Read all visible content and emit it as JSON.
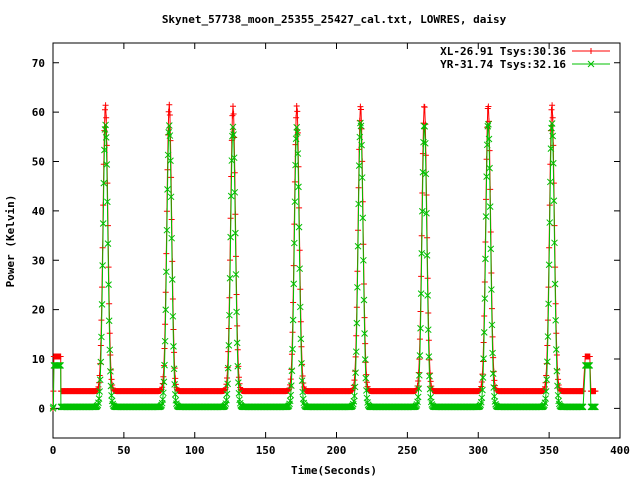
{
  "chart_data": {
    "type": "scatter",
    "title": "Skynet_57738_moon_25355_25427_cal.txt, LOWRES, daisy",
    "xlabel": "Time(Seconds)",
    "ylabel": "Power (Kelvin)",
    "xlim": [
      0,
      400
    ],
    "ylim": [
      -6,
      74
    ],
    "x_ticks": [
      "0",
      "50",
      "100",
      "150",
      "200",
      "250",
      "300",
      "350",
      "400"
    ],
    "y_ticks": [
      "0",
      "10",
      "20",
      "30",
      "40",
      "50",
      "60",
      "70"
    ],
    "grid": false,
    "legend_position": "top-right",
    "peak_times": [
      37,
      82,
      127,
      172,
      217,
      262,
      307,
      352
    ],
    "series": [
      {
        "name": "XL-26.91 Tsys:30.36",
        "color": "#ff0000",
        "marker": "plus",
        "baseline": 3.5,
        "cal_level": 10.5,
        "peak_values": [
          61.5,
          61.5,
          61.2,
          61.3,
          61.3,
          61.5,
          61.4,
          61.5
        ]
      },
      {
        "name": "YR-31.74 Tsys:32.16",
        "color": "#00c000",
        "marker": "x",
        "baseline": 0.3,
        "cal_level": 8.7,
        "peak_values": [
          57.5,
          57.3,
          57.0,
          57.0,
          58.0,
          57.6,
          57.8,
          57.8
        ]
      }
    ]
  }
}
